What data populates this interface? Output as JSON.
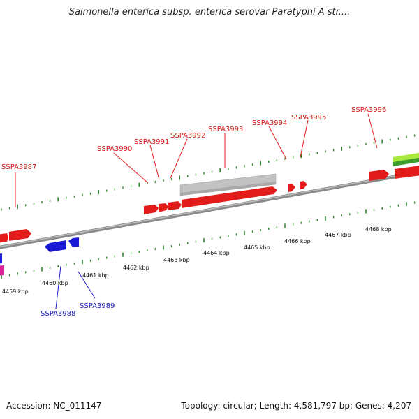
{
  "title": "Salmonella enterica subsp. enterica serovar Paratyphi A str....",
  "footer": {
    "accession": "Accession: NC_011147",
    "topology": "Topology: circular; Length: 4,581,797 bp; Genes: 4,207"
  },
  "kbp_labels": [
    "4459 kbp",
    "4460 kbp",
    "4461 kbp",
    "4462 kbp",
    "4463 kbp",
    "4464 kbp",
    "4465 kbp",
    "4466 kbp",
    "4467 kbp",
    "4468 kbp"
  ],
  "forward_genes": [
    "SSPA3987",
    "SSPA3990",
    "SSPA3991",
    "SSPA3992",
    "SSPA3993",
    "SSPA3994",
    "SSPA3995",
    "SSPA3996"
  ],
  "reverse_genes": [
    "SSPA3988",
    "SSPA3989"
  ],
  "colors": {
    "forward": "#e21b1b",
    "reverse": "#1a1ad4",
    "feature": "#c0c0c0",
    "tick": "#2d8a2d",
    "backbone": "#8a8a8a",
    "forward_label": "#d41414",
    "reverse_label": "#1a1ab8"
  }
}
